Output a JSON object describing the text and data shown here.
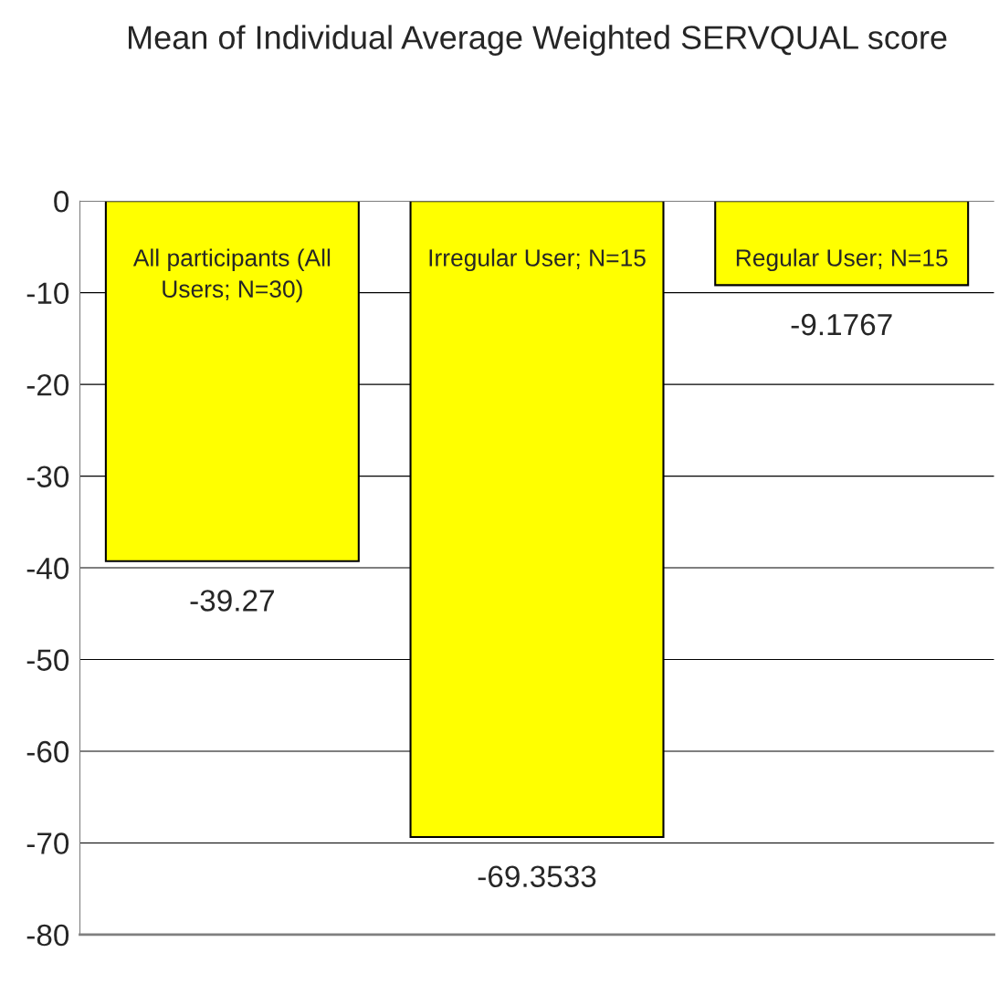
{
  "chart_data": {
    "type": "bar",
    "title": "Mean of Individual Average Weighted SERVQUAL score",
    "categories": [
      "All participants (All Users; N=30)",
      "Irregular User; N=15",
      "Regular User; N=15"
    ],
    "values": [
      -39.27,
      -69.3533,
      -9.1767
    ],
    "color": "#ffff00",
    "ylim": [
      -80,
      0
    ],
    "yticks": [
      -80,
      -70,
      -60,
      -50,
      -40,
      -30,
      -20,
      -10,
      0
    ],
    "grid": "y",
    "data_labels": true
  }
}
